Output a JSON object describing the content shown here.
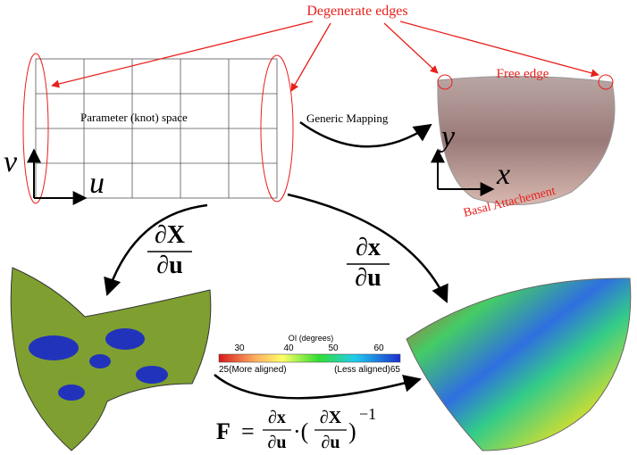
{
  "labels": {
    "degenerate_edges": "Degenerate edges",
    "free_edge": "Free edge",
    "parameter_space": "Parameter (knot) space",
    "generic_mapping": "Generic Mapping",
    "basal_attachment": "Basal Attachement"
  },
  "axes": {
    "param": {
      "v": "v",
      "u": "u"
    },
    "physical": {
      "y": "y",
      "x": "x"
    }
  },
  "derivatives": {
    "reference": {
      "numerator": "∂X",
      "denominator": "∂u"
    },
    "current": {
      "numerator": "∂x",
      "denominator": "∂u"
    }
  },
  "formula": {
    "lhs": "F",
    "equals": "=",
    "num1": "∂x",
    "den1": "∂u",
    "dot_open": "·(",
    "num2": "∂X",
    "den2": "∂u",
    "close": ")",
    "exponent": "−1"
  },
  "colorbar": {
    "title": "OI (degrees)",
    "ticks": [
      "30",
      "40",
      "50",
      "60"
    ],
    "min_label": "25(More aligned)",
    "max_label": "(Less aligned)65"
  }
}
